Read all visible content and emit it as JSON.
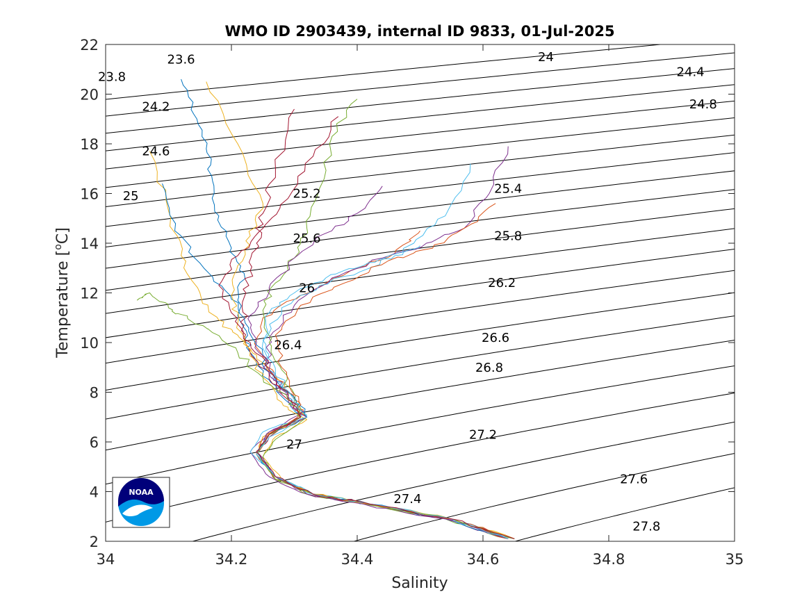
{
  "chart_data": {
    "type": "line",
    "title": "WMO ID 2903439, internal ID 9833, 01-Jul-2025",
    "xlabel": "Salinity",
    "ylabel": "Temperature [°C]",
    "ylabel_main": "Temperature [",
    "ylabel_sup": "o",
    "ylabel_end": "C]",
    "xlim": [
      34,
      35
    ],
    "ylim": [
      2,
      22
    ],
    "xticks": [
      "34",
      "34.2",
      "34.4",
      "34.6",
      "34.8",
      "35"
    ],
    "yticks": [
      "2",
      "4",
      "6",
      "8",
      "10",
      "12",
      "14",
      "16",
      "18",
      "20",
      "22"
    ],
    "density_contours": {
      "levels": [
        23.6,
        23.8,
        24.0,
        24.2,
        24.4,
        24.6,
        24.8,
        25.0,
        25.2,
        25.4,
        25.6,
        25.8,
        26.0,
        26.2,
        26.4,
        26.6,
        26.8,
        27.0,
        27.2,
        27.4,
        27.6,
        27.8
      ],
      "labels": [
        {
          "text": "23.6",
          "s": 34.12,
          "t": 21.4
        },
        {
          "text": "23.8",
          "s": 34.01,
          "t": 20.7
        },
        {
          "text": "24",
          "s": 34.7,
          "t": 21.5
        },
        {
          "text": "24.2",
          "s": 34.08,
          "t": 19.5
        },
        {
          "text": "24.4",
          "s": 34.93,
          "t": 20.9
        },
        {
          "text": "24.6",
          "s": 34.08,
          "t": 17.7
        },
        {
          "text": "24.8",
          "s": 34.95,
          "t": 19.6
        },
        {
          "text": "25",
          "s": 34.04,
          "t": 15.9
        },
        {
          "text": "25.2",
          "s": 34.32,
          "t": 16.0
        },
        {
          "text": "25.4",
          "s": 34.64,
          "t": 16.2
        },
        {
          "text": "25.6",
          "s": 34.32,
          "t": 14.2
        },
        {
          "text": "25.8",
          "s": 34.64,
          "t": 14.3
        },
        {
          "text": "26",
          "s": 34.32,
          "t": 12.2
        },
        {
          "text": "26.2",
          "s": 34.63,
          "t": 12.4
        },
        {
          "text": "26.4",
          "s": 34.29,
          "t": 9.9
        },
        {
          "text": "26.6",
          "s": 34.62,
          "t": 10.2
        },
        {
          "text": "26.8",
          "s": 34.61,
          "t": 9.0
        },
        {
          "text": "27",
          "s": 34.3,
          "t": 5.9
        },
        {
          "text": "27.2",
          "s": 34.6,
          "t": 6.3
        },
        {
          "text": "27.4",
          "s": 34.48,
          "t": 3.7
        },
        {
          "text": "27.6",
          "s": 34.84,
          "t": 4.5
        },
        {
          "text": "27.8",
          "s": 34.86,
          "t": 2.6
        }
      ]
    },
    "profile_colors": [
      "#0072bd",
      "#d95319",
      "#edb120",
      "#7e2f8e",
      "#77ac30",
      "#4dbeee",
      "#a2142f"
    ],
    "profiles": [
      {
        "s": [
          34.65,
          34.55,
          34.42,
          34.33,
          34.27,
          34.24,
          34.26,
          34.31,
          34.29,
          34.26,
          34.23,
          34.22,
          34.21,
          34.22,
          34.2,
          34.18,
          34.17,
          34.16,
          34.14,
          34.12
        ],
        "t": [
          2.1,
          2.9,
          3.5,
          3.9,
          4.6,
          5.6,
          6.3,
          7.0,
          7.6,
          8.5,
          9.6,
          10.6,
          11.7,
          12.8,
          13.8,
          15.1,
          16.5,
          17.8,
          19.2,
          20.6
        ]
      },
      {
        "s": [
          34.65,
          34.55,
          34.42,
          34.33,
          34.27,
          34.24,
          34.25,
          34.32,
          34.3,
          34.27,
          34.24,
          34.25,
          34.31,
          34.39,
          34.46,
          34.5
        ],
        "t": [
          2.1,
          2.9,
          3.5,
          3.9,
          4.6,
          5.5,
          6.2,
          7.0,
          7.7,
          8.7,
          9.8,
          11.0,
          11.9,
          12.9,
          13.6,
          14.5
        ]
      },
      {
        "s": [
          34.65,
          34.55,
          34.42,
          34.33,
          34.28,
          34.25,
          34.27,
          34.32,
          34.3,
          34.27,
          34.24,
          34.21,
          34.18,
          34.15,
          34.12,
          34.1,
          34.07
        ],
        "t": [
          2.1,
          2.9,
          3.5,
          3.9,
          4.5,
          5.4,
          6.2,
          6.9,
          7.6,
          8.6,
          9.5,
          10.3,
          10.9,
          12.0,
          13.5,
          15.3,
          17.7
        ]
      },
      {
        "s": [
          34.64,
          34.54,
          34.41,
          34.32,
          34.26,
          34.23,
          34.26,
          34.31,
          34.29,
          34.26,
          34.26,
          34.3,
          34.36,
          34.44,
          34.51,
          34.57,
          34.61,
          34.64
        ],
        "t": [
          2.1,
          2.9,
          3.5,
          3.9,
          4.6,
          5.6,
          6.4,
          7.1,
          7.8,
          8.9,
          10.2,
          11.5,
          12.6,
          13.4,
          14.0,
          14.6,
          16.0,
          17.9
        ]
      },
      {
        "s": [
          34.64,
          34.54,
          34.41,
          34.32,
          34.27,
          34.25,
          34.27,
          34.32,
          34.3,
          34.28,
          34.26,
          34.25,
          34.27,
          34.3,
          34.32,
          34.34,
          34.36,
          34.4
        ],
        "t": [
          2.1,
          2.9,
          3.5,
          3.9,
          4.5,
          5.4,
          6.1,
          7.0,
          7.7,
          8.9,
          10.0,
          11.3,
          12.4,
          13.4,
          14.6,
          16.2,
          18.3,
          19.8
        ]
      },
      {
        "s": [
          34.65,
          34.55,
          34.42,
          34.33,
          34.27,
          34.23,
          34.25,
          34.31,
          34.29,
          34.26,
          34.25,
          34.28,
          34.34,
          34.42,
          34.49,
          34.54,
          34.58
        ],
        "t": [
          2.1,
          2.9,
          3.5,
          3.9,
          4.6,
          5.6,
          6.4,
          7.0,
          7.8,
          8.9,
          10.1,
          11.4,
          12.3,
          13.0,
          14.0,
          15.1,
          17.2
        ]
      },
      {
        "s": [
          34.64,
          34.55,
          34.42,
          34.33,
          34.27,
          34.24,
          34.26,
          34.31,
          34.29,
          34.26,
          34.23,
          34.22,
          34.22,
          34.23,
          34.24,
          34.25,
          34.27,
          34.3
        ],
        "t": [
          2.1,
          2.9,
          3.5,
          3.9,
          4.5,
          5.5,
          6.2,
          7.0,
          7.7,
          8.7,
          9.6,
          10.7,
          11.8,
          12.9,
          14.0,
          15.2,
          17.0,
          19.4
        ]
      },
      {
        "s": [
          34.64,
          34.54,
          34.42,
          34.33,
          34.27,
          34.24,
          34.26,
          34.32,
          34.3,
          34.26,
          34.24,
          34.22,
          34.19,
          34.15,
          34.11,
          34.09
        ],
        "t": [
          2.1,
          2.9,
          3.5,
          3.9,
          4.6,
          5.5,
          6.3,
          7.0,
          7.8,
          8.8,
          9.9,
          11.0,
          12.1,
          13.2,
          14.5,
          16.4
        ]
      },
      {
        "s": [
          34.64,
          34.55,
          34.42,
          34.33,
          34.27,
          34.24,
          34.26,
          34.31,
          34.3,
          34.28,
          34.27,
          34.31,
          34.38,
          34.45,
          34.52,
          34.57,
          34.62
        ],
        "t": [
          2.1,
          2.9,
          3.5,
          3.9,
          4.6,
          5.5,
          6.3,
          7.1,
          7.9,
          9.0,
          10.3,
          11.5,
          12.4,
          13.3,
          13.8,
          14.6,
          15.6
        ]
      },
      {
        "s": [
          34.65,
          34.55,
          34.42,
          34.33,
          34.27,
          34.24,
          34.25,
          34.31,
          34.28,
          34.25,
          34.23,
          34.21,
          34.2,
          34.21,
          34.23,
          34.25,
          34.21,
          34.16
        ],
        "t": [
          2.1,
          2.9,
          3.5,
          3.9,
          4.5,
          5.5,
          6.2,
          6.9,
          7.6,
          8.6,
          9.7,
          10.8,
          11.9,
          13.1,
          14.3,
          15.6,
          18.0,
          20.5
        ]
      },
      {
        "s": [
          34.64,
          34.54,
          34.41,
          34.32,
          34.27,
          34.24,
          34.26,
          34.32,
          34.29,
          34.26,
          34.24,
          34.23,
          34.26,
          34.3,
          34.35,
          34.4,
          34.44
        ],
        "t": [
          2.1,
          2.9,
          3.5,
          3.9,
          4.6,
          5.6,
          6.4,
          7.0,
          7.7,
          8.8,
          10.0,
          11.1,
          12.2,
          13.4,
          14.4,
          15.2,
          16.3
        ]
      },
      {
        "s": [
          34.65,
          34.55,
          34.42,
          34.33,
          34.27,
          34.24,
          34.26,
          34.31,
          34.29,
          34.25,
          34.21,
          34.17,
          34.13,
          34.1,
          34.07,
          34.05
        ],
        "t": [
          2.1,
          2.9,
          3.5,
          3.9,
          4.5,
          5.5,
          6.3,
          7.0,
          7.7,
          8.6,
          9.6,
          10.4,
          11.0,
          11.4,
          12.0,
          11.7
        ]
      },
      {
        "s": [
          34.64,
          34.55,
          34.42,
          34.33,
          34.27,
          34.24,
          34.26,
          34.32,
          34.3,
          34.27,
          34.25,
          34.26,
          34.3,
          34.35,
          34.41,
          34.46,
          34.5
        ],
        "t": [
          2.1,
          2.9,
          3.5,
          3.9,
          4.6,
          5.5,
          6.2,
          7.0,
          7.7,
          8.8,
          10.0,
          11.2,
          12.0,
          12.6,
          13.1,
          13.5,
          13.9
        ]
      },
      {
        "s": [
          34.65,
          34.55,
          34.42,
          34.33,
          34.27,
          34.24,
          34.26,
          34.31,
          34.29,
          34.26,
          34.23,
          34.2,
          34.18,
          34.21,
          34.25,
          34.29,
          34.33,
          34.37
        ],
        "t": [
          2.1,
          2.9,
          3.5,
          3.9,
          4.6,
          5.6,
          6.3,
          7.0,
          7.8,
          8.9,
          10.0,
          11.2,
          12.3,
          13.5,
          14.6,
          15.8,
          17.5,
          19.1
        ]
      }
    ]
  },
  "logo": {
    "text": "NOAA",
    "colors": {
      "navy": "#00007a",
      "sky": "#0099e6",
      "white": "#ffffff"
    }
  }
}
